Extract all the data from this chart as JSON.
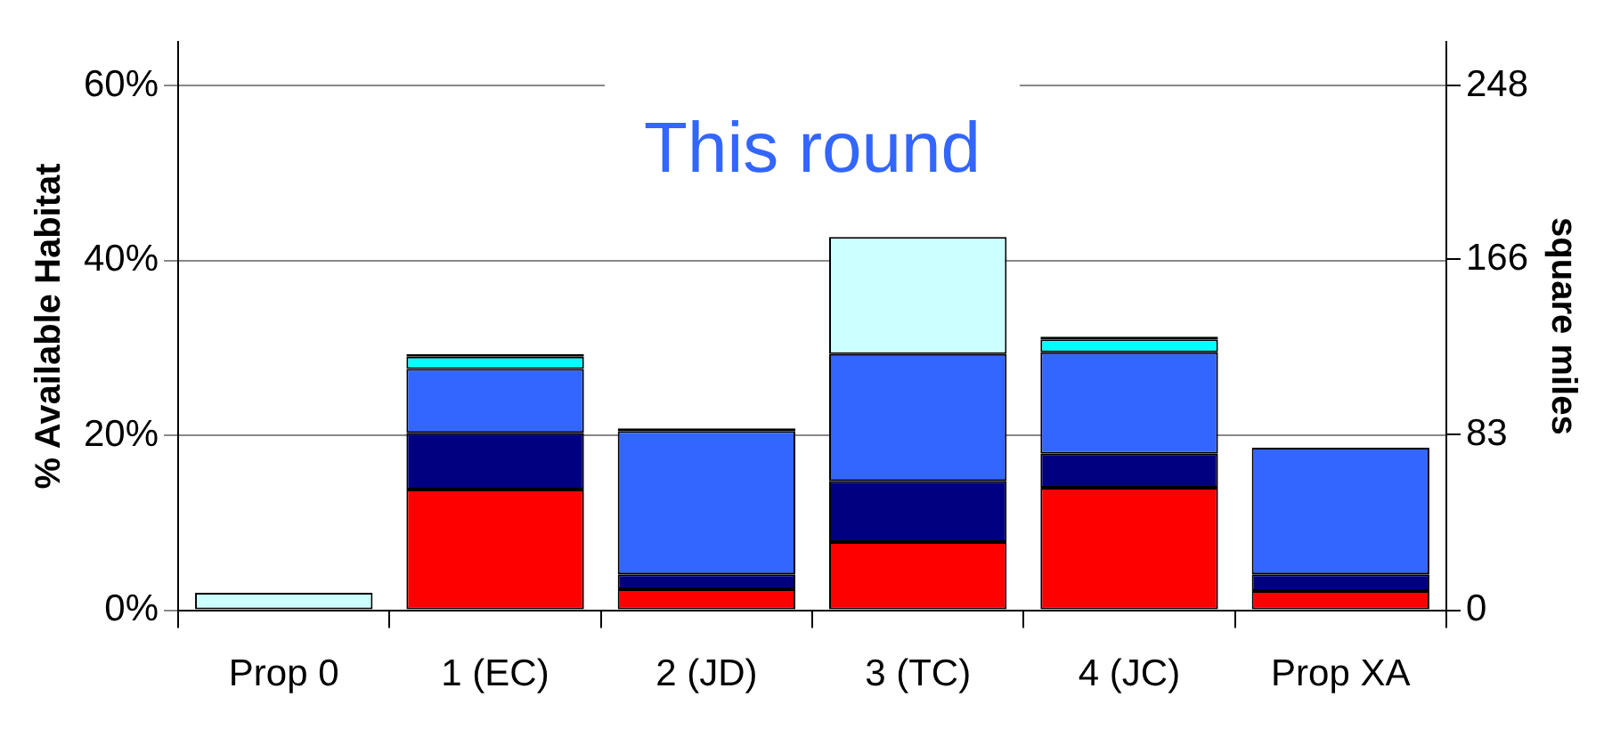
{
  "chart_data": {
    "type": "bar",
    "title": "This round",
    "stacked": true,
    "ylabel": "% Available Habitat",
    "y2label": "square miles",
    "categories": [
      "Prop 0",
      "1 (EC)",
      "2 (JD)",
      "3 (TC)",
      "4 (JC)",
      "Prop XA"
    ],
    "series": [
      {
        "color": "#ff0000",
        "values": [
          null,
          13.8,
          2.4,
          7.8,
          14.0,
          2.2
        ]
      },
      {
        "color": "#000080",
        "values": [
          null,
          6.5,
          1.7,
          7.0,
          3.9,
          1.9
        ]
      },
      {
        "color": "#3366ff",
        "values": [
          null,
          7.3,
          16.4,
          14.5,
          11.6,
          14.5
        ]
      },
      {
        "color": "#00ffff",
        "values": [
          null,
          1.4,
          null,
          null,
          1.5,
          null
        ]
      },
      {
        "color": "#000000",
        "values": [
          null,
          0.3,
          0.3,
          null,
          0.3,
          null
        ]
      },
      {
        "color": "#ccffff",
        "values": [
          2.0,
          null,
          null,
          13.4,
          null,
          null
        ]
      }
    ],
    "ylim": [
      0,
      65
    ],
    "yticks": [
      {
        "value": 0,
        "label": "0%"
      },
      {
        "value": 20,
        "label": "20%"
      },
      {
        "value": 40,
        "label": "40%"
      },
      {
        "value": 60,
        "label": "60%"
      }
    ],
    "y2lim": [
      0,
      268.7
    ],
    "y2ticks": [
      0,
      83,
      166,
      248
    ],
    "grid": "y",
    "legend": false
  }
}
